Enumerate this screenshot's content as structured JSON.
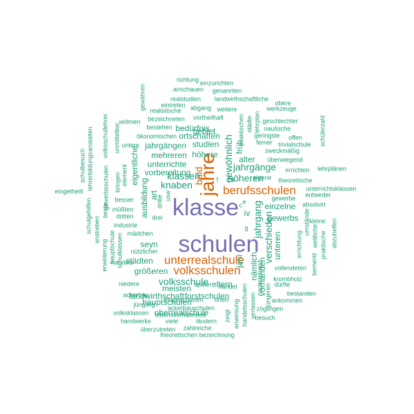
{
  "words": [
    {
      "id": "klasse",
      "text": "klasse",
      "color": "#7570b3"
    },
    {
      "id": "schulen",
      "text": "schulen",
      "color": "#7570b3"
    },
    {
      "id": "jahre",
      "text": "jahre",
      "color": "#d95f02"
    },
    {
      "id": "unterrealschule",
      "text": "unterrealschule",
      "color": "#d95f02"
    },
    {
      "id": "berufsschulen",
      "text": "berufsschulen",
      "color": "#d95f02"
    },
    {
      "id": "volksschulen",
      "text": "volksschulen",
      "color": "#d95f02"
    },
    {
      "id": "klassen",
      "text": "klassen",
      "color": "#1b9e77"
    },
    {
      "id": "knaben",
      "text": "knaben",
      "color": "#1b9e77"
    },
    {
      "id": "hoheren",
      "text": "höheren",
      "color": "#1b9e77"
    },
    {
      "id": "jahrgange",
      "text": "jahrgänge",
      "color": "#1b9e77"
    },
    {
      "id": "volksschule",
      "text": "volksschule",
      "color": "#1b9e77"
    },
    {
      "id": "gewohnlich",
      "text": "gewöhnlich",
      "color": "#1b9e77"
    },
    {
      "id": "bald",
      "text": "bald",
      "color": "#d95f02"
    },
    {
      "id": "jahrgang",
      "text": "jahrgang",
      "color": "#1b9e77"
    },
    {
      "id": "verschieden",
      "text": "verschieden",
      "color": "#1b9e77"
    },
    {
      "id": "unterrichte",
      "text": "unterrichte",
      "color": "#1b9e77"
    },
    {
      "id": "mehreren",
      "text": "mehreren",
      "color": "#1b9e77"
    },
    {
      "id": "hohere",
      "text": "höhere",
      "color": "#1b9e77"
    },
    {
      "id": "studien",
      "text": "studien",
      "color": "#1b9e77"
    },
    {
      "id": "jahrgangen",
      "text": "jahrgängen",
      "color": "#1b9e77"
    },
    {
      "id": "ortschaften",
      "text": "ortschaften",
      "color": "#1b9e77"
    },
    {
      "id": "bedurfnis",
      "text": "bedürfnis",
      "color": "#1b9e77"
    },
    {
      "id": "ausbildung",
      "text": "ausbildung",
      "color": "#1b9e77"
    },
    {
      "id": "vorbereitung",
      "text": "vorbereitung",
      "color": "#1b9e77"
    },
    {
      "id": "meisten",
      "text": "meisten",
      "color": "#1b9e77"
    },
    {
      "id": "hauptschulen",
      "text": "hauptschulen",
      "color": "#1b9e77"
    },
    {
      "id": "oberrealschule",
      "text": "oberrealschule",
      "color": "#1b9e77"
    },
    {
      "id": "forstschulen",
      "text": "forstschulen",
      "color": "#1b9e77"
    },
    {
      "id": "landwirthschaft",
      "text": "landwirthschaft",
      "color": "#1b9e77"
    },
    {
      "id": "grosseren",
      "text": "größeren",
      "color": "#1b9e77"
    },
    {
      "id": "stadten",
      "text": "städten",
      "color": "#1b9e77"
    },
    {
      "id": "seyn",
      "text": "seyn",
      "color": "#1b9e77"
    },
    {
      "id": "eltern",
      "text": "eltern",
      "color": "#1b9e77"
    },
    {
      "id": "gewerbs",
      "text": "gewerbs",
      "color": "#1b9e77"
    },
    {
      "id": "einzelne",
      "text": "einzelne",
      "color": "#1b9e77"
    },
    {
      "id": "alter",
      "text": "alter",
      "color": "#1b9e77"
    },
    {
      "id": "unteren",
      "text": "unteren",
      "color": "#1b9e77"
    },
    {
      "id": "namlich",
      "text": "nämlich",
      "color": "#1b9e77"
    },
    {
      "id": "iv",
      "text": "iv",
      "color": "#1b9e77"
    },
    {
      "id": "gebiet",
      "text": "gebiet",
      "color": "#1b9e77"
    },
    {
      "id": "fruh",
      "text": "früh",
      "color": "#1b9e77"
    },
    {
      "id": "eigentliche",
      "text": "eigentliche",
      "color": "#1b9e77"
    },
    {
      "id": "art",
      "text": "art",
      "color": "#1b9e77"
    },
    {
      "id": "dritte",
      "text": "dritte",
      "color": "#1b9e77"
    },
    {
      "id": "usw",
      "text": "usw",
      "color": "#1b9e77"
    },
    {
      "id": "drei",
      "text": "drei",
      "color": "#1b9e77"
    },
    {
      "id": "besser",
      "text": "besser",
      "color": "#1b9e77"
    },
    {
      "id": "mussten",
      "text": "müßten",
      "color": "#1b9e77"
    },
    {
      "id": "dritten",
      "text": "dritten",
      "color": "#1b9e77"
    },
    {
      "id": "industrie",
      "text": "industrie",
      "color": "#1b9e77"
    },
    {
      "id": "madchen",
      "text": "mädchen",
      "color": "#1b9e77"
    },
    {
      "id": "handels",
      "text": "handels",
      "color": "#1b9e77"
    },
    {
      "id": "nutzlicher",
      "text": "nützlicher",
      "color": "#1b9e77"
    },
    {
      "id": "niedere",
      "text": "niedere",
      "color": "#1b9e77"
    },
    {
      "id": "spater",
      "text": "später",
      "color": "#1b9e77"
    },
    {
      "id": "handel",
      "text": "handel",
      "color": "#1b9e77"
    },
    {
      "id": "ackerbau",
      "text": "ackerbau",
      "color": "#1b9e77"
    },
    {
      "id": "eingerichteten",
      "text": "eingerichteten",
      "color": "#1b9e77"
    },
    {
      "id": "orten",
      "text": "orten",
      "color": "#1b9e77"
    },
    {
      "id": "jungling",
      "text": "jüngling",
      "color": "#1b9e77"
    },
    {
      "id": "ackerbauschulen",
      "text": "ackerbauschulen",
      "color": "#1b9e77"
    },
    {
      "id": "volksklassen",
      "text": "volksklassen",
      "color": "#1b9e77"
    },
    {
      "id": "lebensverhaltnisse",
      "text": "lebensverhältnisse",
      "color": "#1b9e77"
    },
    {
      "id": "handwerke",
      "text": "handwerke",
      "color": "#1b9e77"
    },
    {
      "id": "viele",
      "text": "viele",
      "color": "#1b9e77"
    },
    {
      "id": "landern",
      "text": "ländern",
      "color": "#1b9e77"
    },
    {
      "id": "uberzutreten",
      "text": "überzutreten",
      "color": "#1b9e77"
    },
    {
      "id": "zahlreiche",
      "text": "zahlreiche",
      "color": "#1b9e77"
    },
    {
      "id": "theoretischen-bezeichnung",
      "text": "theoretischen bezeichnung",
      "color": "#1b9e77"
    },
    {
      "id": "richtung",
      "text": "richtung",
      "color": "#1b9e77"
    },
    {
      "id": "einzurichten",
      "text": "einzurichten",
      "color": "#1b9e77"
    },
    {
      "id": "anschauen",
      "text": "anschauen",
      "color": "#1b9e77"
    },
    {
      "id": "genannten",
      "text": "genannten",
      "color": "#1b9e77"
    },
    {
      "id": "realstudien",
      "text": "realstudien",
      "color": "#1b9e77"
    },
    {
      "id": "landwirthschaftliche",
      "text": "landwirthschaftliche",
      "color": "#1b9e77"
    },
    {
      "id": "eintreten",
      "text": "eintreten",
      "color": "#1b9e77"
    },
    {
      "id": "obere",
      "text": "obere",
      "color": "#1b9e77"
    },
    {
      "id": "realistische",
      "text": "realistische",
      "color": "#1b9e77"
    },
    {
      "id": "abgang",
      "text": "abgang",
      "color": "#1b9e77"
    },
    {
      "id": "weitere",
      "text": "weitere",
      "color": "#1b9e77"
    },
    {
      "id": "werkzeuge",
      "text": "werkzeuge",
      "color": "#1b9e77"
    },
    {
      "id": "bezeichneten",
      "text": "bezeichneten",
      "color": "#1b9e77"
    },
    {
      "id": "vortheilhaft",
      "text": "vortheilhaft",
      "color": "#1b9e77"
    },
    {
      "id": "geschlechter",
      "text": "geschlechter",
      "color": "#1b9e77"
    },
    {
      "id": "widmen",
      "text": "widmen",
      "color": "#1b9e77"
    },
    {
      "id": "bestehen",
      "text": "bestehen",
      "color": "#1b9e77"
    },
    {
      "id": "nautische",
      "text": "nautische",
      "color": "#1b9e77"
    },
    {
      "id": "okonomischen",
      "text": "ökonomischen",
      "color": "#1b9e77"
    },
    {
      "id": "geringste",
      "text": "geringste",
      "color": "#1b9e77"
    },
    {
      "id": "offen",
      "text": "offen",
      "color": "#1b9e77"
    },
    {
      "id": "ferner",
      "text": "ferner",
      "color": "#1b9e77"
    },
    {
      "id": "trivialschule",
      "text": "trivialschule",
      "color": "#1b9e77"
    },
    {
      "id": "zweckmassig",
      "text": "zweckmäßig",
      "color": "#1b9e77"
    },
    {
      "id": "untere",
      "text": "untere",
      "color": "#1b9e77"
    },
    {
      "id": "uberwiegend",
      "text": "überwiegend",
      "color": "#1b9e77"
    },
    {
      "id": "errichten",
      "text": "errichten",
      "color": "#1b9e77"
    },
    {
      "id": "lehrplanen",
      "text": "lehrplänen",
      "color": "#1b9e77"
    },
    {
      "id": "eigene",
      "text": "eigene",
      "color": "#1b9e77"
    },
    {
      "id": "theoretische",
      "text": "theoretische",
      "color": "#1b9e77"
    },
    {
      "id": "gewerbe",
      "text": "gewerbe",
      "color": "#1b9e77"
    },
    {
      "id": "unterrichtsklassen",
      "text": "unterrichtsklassen",
      "color": "#1b9e77"
    },
    {
      "id": "entweder",
      "text": "entweder",
      "color": "#1b9e77"
    },
    {
      "id": "absolvirt",
      "text": "absolvirt",
      "color": "#1b9e77"
    },
    {
      "id": "kleine",
      "text": "kleine",
      "color": "#1b9e77"
    },
    {
      "id": "vollendeten",
      "text": "vollendeten",
      "color": "#1b9e77"
    },
    {
      "id": "krombholz",
      "text": "krombholz",
      "color": "#1b9e77"
    },
    {
      "id": "durfte",
      "text": "dürfte",
      "color": "#1b9e77"
    },
    {
      "id": "bestanden",
      "text": "bestanden",
      "color": "#1b9e77"
    },
    {
      "id": "ankommen",
      "text": "ankommen",
      "color": "#1b9e77"
    },
    {
      "id": "zoglingen",
      "text": "zöglingen",
      "color": "#1b9e77"
    },
    {
      "id": "besuch",
      "text": "besuch",
      "color": "#1b9e77"
    },
    {
      "id": "eingetheilt",
      "text": "eingetheilt",
      "color": "#1b9e77"
    },
    {
      "id": "e",
      "text": "e",
      "color": "#1b9e77"
    },
    {
      "id": "c",
      "text": "c",
      "color": "#1b9e77"
    },
    {
      "id": "f",
      "text": "f",
      "color": "#1b9e77"
    },
    {
      "id": "g",
      "text": "g",
      "color": "#1b9e77"
    },
    {
      "id": "gewahren",
      "text": "gewähren",
      "color": "#1b9e77"
    },
    {
      "id": "schulbesuch",
      "text": "schulbesuch",
      "color": "#1b9e77"
    },
    {
      "id": "lehrerbildungsanstalten",
      "text": "lehrerbildungsanstalten",
      "color": "#1b9e77"
    },
    {
      "id": "volksschullehrer",
      "text": "volksschullehrer",
      "color": "#1b9e77"
    },
    {
      "id": "unmittelbar",
      "text": "unmittelbar",
      "color": "#1b9e77"
    },
    {
      "id": "element",
      "text": "element",
      "color": "#1b9e77"
    },
    {
      "id": "bringen",
      "text": "bringen",
      "color": "#1b9e77"
    },
    {
      "id": "gewerbsschulen",
      "text": "gewerbsschulen",
      "color": "#1b9e77"
    },
    {
      "id": "schulgehilfen",
      "text": "schulgehilfen",
      "color": "#1b9e77"
    },
    {
      "id": "anstreben",
      "text": "anstreben",
      "color": "#1b9e77"
    },
    {
      "id": "beste",
      "text": "beste",
      "color": "#1b9e77"
    },
    {
      "id": "erweiterung",
      "text": "erweiterung",
      "color": "#1b9e77"
    },
    {
      "id": "hauptschule",
      "text": "hauptschule",
      "color": "#1b9e77"
    },
    {
      "id": "schulklassen",
      "text": "schulklassen",
      "color": "#1b9e77"
    },
    {
      "id": "schulzahl",
      "text": "schülerzahl",
      "color": "#1b9e77"
    },
    {
      "id": "praktischen",
      "text": "praktischen",
      "color": "#1b9e77"
    },
    {
      "id": "lehrplan",
      "text": "lehrplan",
      "color": "#1b9e77"
    },
    {
      "id": "stadte",
      "text": "städte",
      "color": "#1b9e77"
    },
    {
      "id": "umstande",
      "text": "umstände",
      "color": "#1b9e77"
    },
    {
      "id": "weltliche",
      "text": "weltliche",
      "color": "#1b9e77"
    },
    {
      "id": "abzuhelfen",
      "text": "abzuhelfen",
      "color": "#1b9e77"
    },
    {
      "id": "praktische",
      "text": "praktische",
      "color": "#1b9e77"
    },
    {
      "id": "bemerkt",
      "text": "bemerkt",
      "color": "#1b9e77"
    },
    {
      "id": "errichtung",
      "text": "errichtung",
      "color": "#1b9e77"
    },
    {
      "id": "jahr",
      "text": "jahr",
      "color": "#1b9e77"
    },
    {
      "id": "vorhanden",
      "text": "vorhanden",
      "color": "#1b9e77"
    },
    {
      "id": "jungen",
      "text": "jüngeren",
      "color": "#1b9e77"
    },
    {
      "id": "handelsschulen",
      "text": "handelsschulen",
      "color": "#1b9e77"
    },
    {
      "id": "verlassen",
      "text": "verlassen",
      "color": "#1b9e77"
    },
    {
      "id": "zeigt",
      "text": "zeigt",
      "color": "#1b9e77"
    },
    {
      "id": "anweisung",
      "text": "anweisung",
      "color": "#1b9e77"
    },
    {
      "id": "nachstehend",
      "text": "nachstehend",
      "color": "#1b9e77"
    }
  ]
}
